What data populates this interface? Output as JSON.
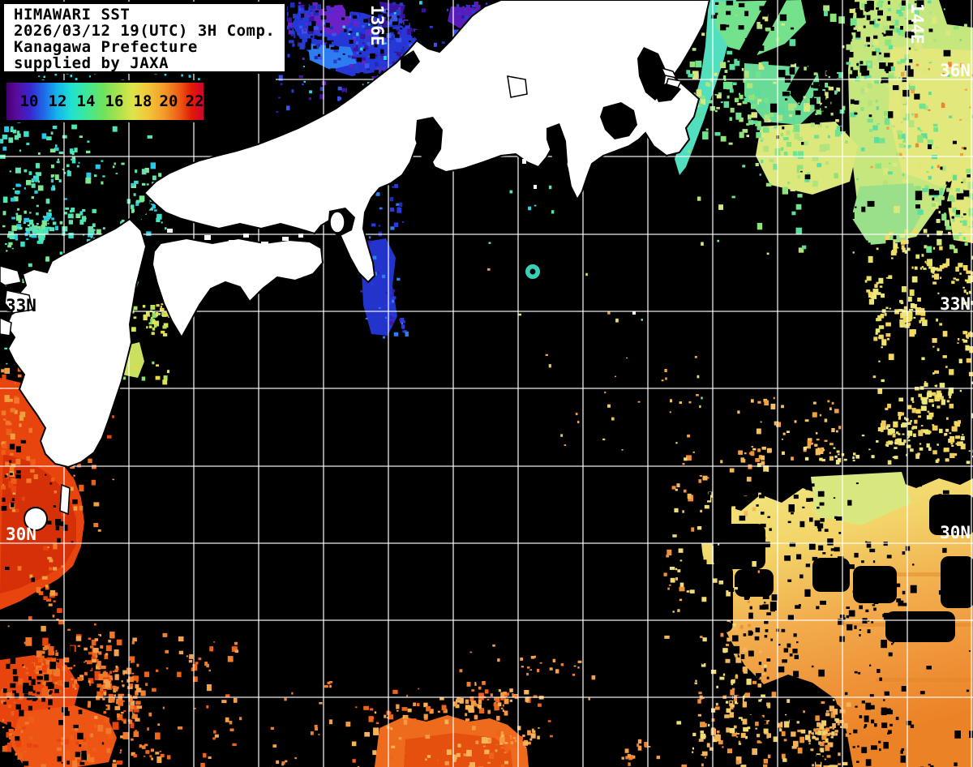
{
  "title_panel": {
    "lines": [
      "HIMAWARI SST",
      "2026/03/12 19(UTC) 3H Comp.",
      "Kanagawa Prefecture",
      "supplied by JAXA"
    ]
  },
  "colorbar": {
    "tick_labels": [
      "10",
      "12",
      "14",
      "16",
      "18",
      "20",
      "22"
    ],
    "scale_values_c": [
      10,
      12,
      14,
      16,
      18,
      20,
      22
    ],
    "gradient_stops": [
      "#43006f",
      "#3826cf",
      "#16b6ec",
      "#1fe2d0",
      "#3fe896",
      "#abe24c",
      "#dee44a",
      "#f2c63a",
      "#f29a2a",
      "#ee5a14",
      "#cf0433"
    ]
  },
  "graticule": {
    "lon_labels": [
      "136E",
      "144E"
    ],
    "lat_labels_right": [
      "36N",
      "33N",
      "30N"
    ],
    "lat_labels_left": [
      "33N",
      "30N"
    ],
    "lat_line_degrees": [
      36,
      35,
      34,
      33,
      32,
      31,
      30,
      29,
      28
    ],
    "lon_line_degrees": [
      131,
      132,
      133,
      134,
      135,
      136,
      137,
      138,
      139,
      140,
      141,
      142,
      143,
      144,
      145
    ]
  },
  "palette": {
    "background": "#000000",
    "land": "#ffffff",
    "grid": "#ffffff",
    "cold_purple": "#6a22c8",
    "cold_blue": "#2a3ae0",
    "cool_cyan": "#38e0cc",
    "mild_green": "#72e28e",
    "warm_yellow": "#ece878",
    "warm_orange": "#f0a040",
    "hot_red": "#e8440e"
  }
}
